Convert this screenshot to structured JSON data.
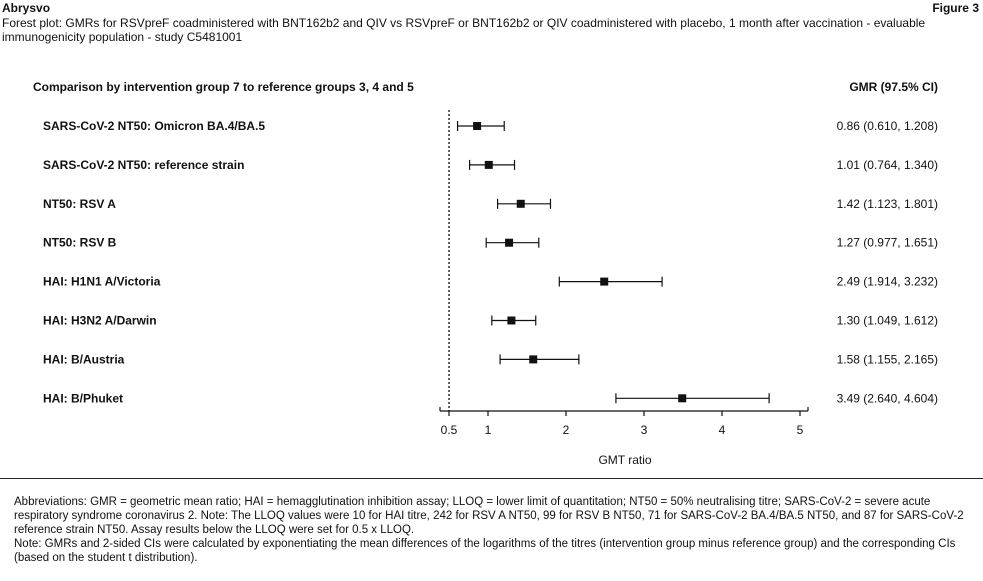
{
  "header": {
    "brand": "Abrysvo",
    "figure_label": "Figure 3",
    "title": "Forest plot: GMRs for RSVpreF coadministered with BNT162b2 and QIV vs RSVpreF or BNT162b2 or QIV coadministered with placebo, 1 month after vaccination - evaluable immunogenicity population - study C5481001"
  },
  "chart_data": {
    "type": "forest",
    "column_header_left": "Comparison by intervention group 7 to reference groups 3, 4 and 5",
    "column_header_right": "GMR (97.5% CI)",
    "xlabel": "GMT ratio",
    "x_ticks": [
      "0.5",
      "1",
      "2",
      "3",
      "4",
      "5"
    ],
    "x_tick_values": [
      0.5,
      1,
      2,
      3,
      4,
      5
    ],
    "xlim": [
      0.5,
      5.15
    ],
    "reference_line": 0.5,
    "rows": [
      {
        "label": "SARS-CoV-2 NT50: Omicron BA.4/BA.5",
        "estimate": 0.86,
        "lower": 0.61,
        "upper": 1.208,
        "text": "0.86 (0.610, 1.208)"
      },
      {
        "label": "SARS-CoV-2 NT50: reference strain",
        "estimate": 1.01,
        "lower": 0.764,
        "upper": 1.34,
        "text": "1.01 (0.764, 1.340)"
      },
      {
        "label": "NT50: RSV A",
        "estimate": 1.42,
        "lower": 1.123,
        "upper": 1.801,
        "text": "1.42 (1.123, 1.801)"
      },
      {
        "label": "NT50: RSV B",
        "estimate": 1.27,
        "lower": 0.977,
        "upper": 1.651,
        "text": "1.27 (0.977, 1.651)"
      },
      {
        "label": "HAI: H1N1 A/Victoria",
        "estimate": 2.49,
        "lower": 1.914,
        "upper": 3.232,
        "text": "2.49 (1.914, 3.232)"
      },
      {
        "label": "HAI: H3N2 A/Darwin",
        "estimate": 1.3,
        "lower": 1.049,
        "upper": 1.612,
        "text": "1.30 (1.049, 1.612)"
      },
      {
        "label": "HAI: B/Austria",
        "estimate": 1.58,
        "lower": 1.155,
        "upper": 2.165,
        "text": "1.58 (1.155, 2.165)"
      },
      {
        "label": "HAI: B/Phuket",
        "estimate": 3.49,
        "lower": 2.64,
        "upper": 4.604,
        "text": "3.49 (2.640, 4.604)"
      }
    ]
  },
  "footnotes": {
    "abbreviations": "Abbreviations: GMR = geometric mean ratio; HAI = hemagglutination inhibition assay; LLOQ = lower limit of quantitation; NT50 = 50% neutralising titre; SARS-CoV-2 = severe acute respiratory syndrome coronavirus 2. Note: The LLOQ values were 10 for HAI titre, 242 for RSV A NT50, 99 for RSV B NT50, 71 for SARS-CoV-2 BA.4/BA.5 NT50, and 87 for SARS-CoV-2 reference strain NT50. Assay results below the LLOQ were set for 0.5 x LLOQ.",
    "note": "Note: GMRs and 2-sided CIs were calculated by exponentiating the mean differences of the logarithms of the titres (intervention group minus reference group) and the corresponding CIs (based on the student t distribution)."
  }
}
